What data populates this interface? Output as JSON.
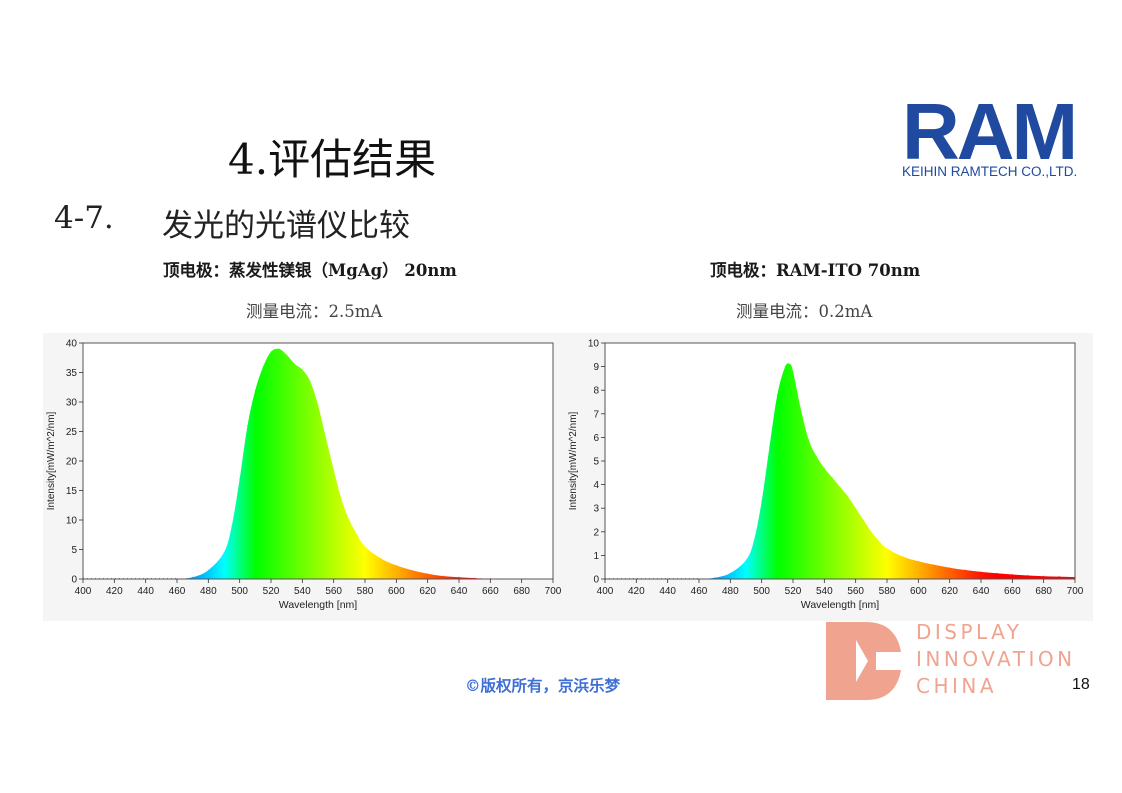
{
  "title": "4.评估结果",
  "subtitle": {
    "number": "4-7.",
    "text": "发光的光谱仪比较"
  },
  "logo": {
    "name": "RAM",
    "company": "KEIHIN RAMTECH CO.,LTD."
  },
  "footer": {
    "copyright": "©版权所有，京浜乐梦",
    "page_number": "18",
    "brand_lines": [
      "DISPLAY",
      "INNOVATION",
      "CHINA"
    ]
  },
  "colors": {
    "logo_blue": "#1f4aa0",
    "copyright_blue": "#3f6fd6",
    "brand_salmon": "#f0a48f"
  },
  "chart_data": [
    {
      "type": "area",
      "caption": "顶电极：蒸发性镁银（MgAg） 20nm",
      "current": "测量电流：2.5mA",
      "xlabel": "Wavelength [nm]",
      "ylabel": "Intensity[mW/m^2/nm]",
      "xlim": [
        400,
        700
      ],
      "ylim": [
        0,
        40
      ],
      "xticks": [
        400,
        420,
        440,
        460,
        480,
        500,
        520,
        540,
        560,
        580,
        600,
        620,
        640,
        660,
        680,
        700
      ],
      "yticks": [
        0,
        5,
        10,
        15,
        20,
        25,
        30,
        35,
        40
      ],
      "fill": "spectrum",
      "x": [
        460,
        470,
        480,
        490,
        495,
        500,
        505,
        510,
        515,
        520,
        525,
        530,
        535,
        540,
        545,
        550,
        555,
        560,
        565,
        570,
        575,
        580,
        590,
        600,
        610,
        620,
        630,
        640,
        650,
        660,
        665
      ],
      "y": [
        0,
        0.3,
        1.5,
        4.5,
        9,
        17,
        26,
        32,
        36,
        38.5,
        39,
        38,
        36.5,
        35.5,
        33.5,
        29.5,
        24,
        18.5,
        13.5,
        10,
        7.5,
        5.5,
        3.5,
        2.3,
        1.5,
        0.9,
        0.5,
        0.3,
        0.15,
        0.05,
        0
      ]
    },
    {
      "type": "area",
      "caption": "顶电极：RAM-ITO 70nm",
      "current": "测量电流：0.2mA",
      "xlabel": "Wavelength [nm]",
      "ylabel": "Intensity[mW/m^2/nm]",
      "xlim": [
        400,
        700
      ],
      "ylim": [
        0,
        10
      ],
      "xticks": [
        400,
        420,
        440,
        460,
        480,
        500,
        520,
        540,
        560,
        580,
        600,
        620,
        640,
        660,
        680,
        700
      ],
      "yticks": [
        0,
        1,
        2,
        3,
        4,
        5,
        6,
        7,
        8,
        9,
        10
      ],
      "fill": "spectrum",
      "x": [
        460,
        470,
        480,
        490,
        495,
        500,
        505,
        510,
        515,
        518,
        520,
        525,
        530,
        535,
        540,
        545,
        550,
        555,
        560,
        565,
        570,
        575,
        580,
        590,
        600,
        610,
        620,
        630,
        640,
        650,
        660,
        670,
        680,
        690,
        700
      ],
      "y": [
        0,
        0.05,
        0.25,
        0.8,
        1.6,
        3.3,
        5.6,
        7.8,
        9.0,
        9.1,
        8.8,
        7.2,
        5.9,
        5.2,
        4.7,
        4.3,
        3.9,
        3.5,
        3.0,
        2.5,
        2.0,
        1.6,
        1.3,
        0.95,
        0.75,
        0.6,
        0.48,
        0.38,
        0.3,
        0.24,
        0.19,
        0.15,
        0.12,
        0.1,
        0.08
      ]
    }
  ]
}
